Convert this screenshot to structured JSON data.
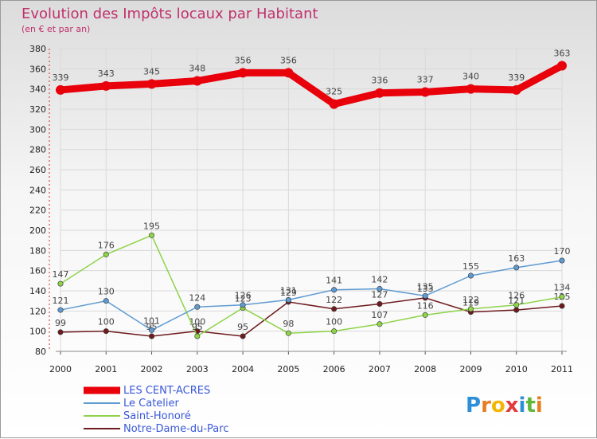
{
  "chart_data": {
    "type": "line",
    "title": "Evolution des Impôts locaux par Habitant",
    "subtitle": "(en € et par an)",
    "xlabel": "",
    "ylabel": "",
    "ylim": [
      80,
      380
    ],
    "yticks": [
      "80",
      "100",
      "120",
      "140",
      "160",
      "180",
      "200",
      "220",
      "240",
      "260",
      "280",
      "300",
      "320",
      "340",
      "360",
      "380"
    ],
    "categories": [
      "2000",
      "2001",
      "2002",
      "2003",
      "2004",
      "2005",
      "2006",
      "2007",
      "2008",
      "2009",
      "2010",
      "2011"
    ],
    "grid": true,
    "legend_position": "bottom-left",
    "series": [
      {
        "name": "LES CENT-ACRES",
        "color": "#e8000b",
        "values": [
          339,
          343,
          345,
          348,
          356,
          356,
          325,
          336,
          337,
          340,
          339,
          363
        ],
        "labels": [
          "339",
          "343",
          "345",
          "348",
          "356",
          "356",
          "325",
          "336",
          "337",
          "340",
          "339",
          "363"
        ]
      },
      {
        "name": "Le Catelier",
        "color": "#5f9bd1",
        "values": [
          121,
          130,
          101,
          124,
          126,
          131,
          141,
          142,
          135,
          155,
          163,
          170
        ],
        "labels": [
          "121",
          "130",
          "101",
          "124",
          "126",
          "131",
          "141",
          "142",
          "135",
          "155",
          "163",
          "170"
        ]
      },
      {
        "name": "Saint-Honoré",
        "color": "#8ed34a",
        "values": [
          147,
          176,
          195,
          95,
          123,
          98,
          100,
          107,
          116,
          122,
          126,
          134
        ],
        "labels": [
          "147",
          "176",
          "195",
          "95",
          "123",
          "98",
          "100",
          "107",
          "116",
          "122",
          "126",
          "134"
        ]
      },
      {
        "name": "Notre-Dame-du-Parc",
        "color": "#6e1b1f",
        "values": [
          99,
          100,
          95,
          100,
          95,
          129,
          122,
          127,
          133,
          119,
          121,
          125
        ],
        "labels": [
          "99",
          "100",
          "95",
          "100",
          "95",
          "129",
          "122",
          "127",
          "133",
          "119",
          "121",
          "125"
        ]
      }
    ]
  },
  "logo": {
    "text": "Proxiti",
    "letters": [
      "P",
      "r",
      "o",
      "x",
      "i",
      "t",
      "i"
    ],
    "colors": [
      "#2e8fd8",
      "#e67e22",
      "#f2b705",
      "#e23b3b",
      "#2e8fd8",
      "#5fb83a",
      "#e67e22"
    ]
  }
}
